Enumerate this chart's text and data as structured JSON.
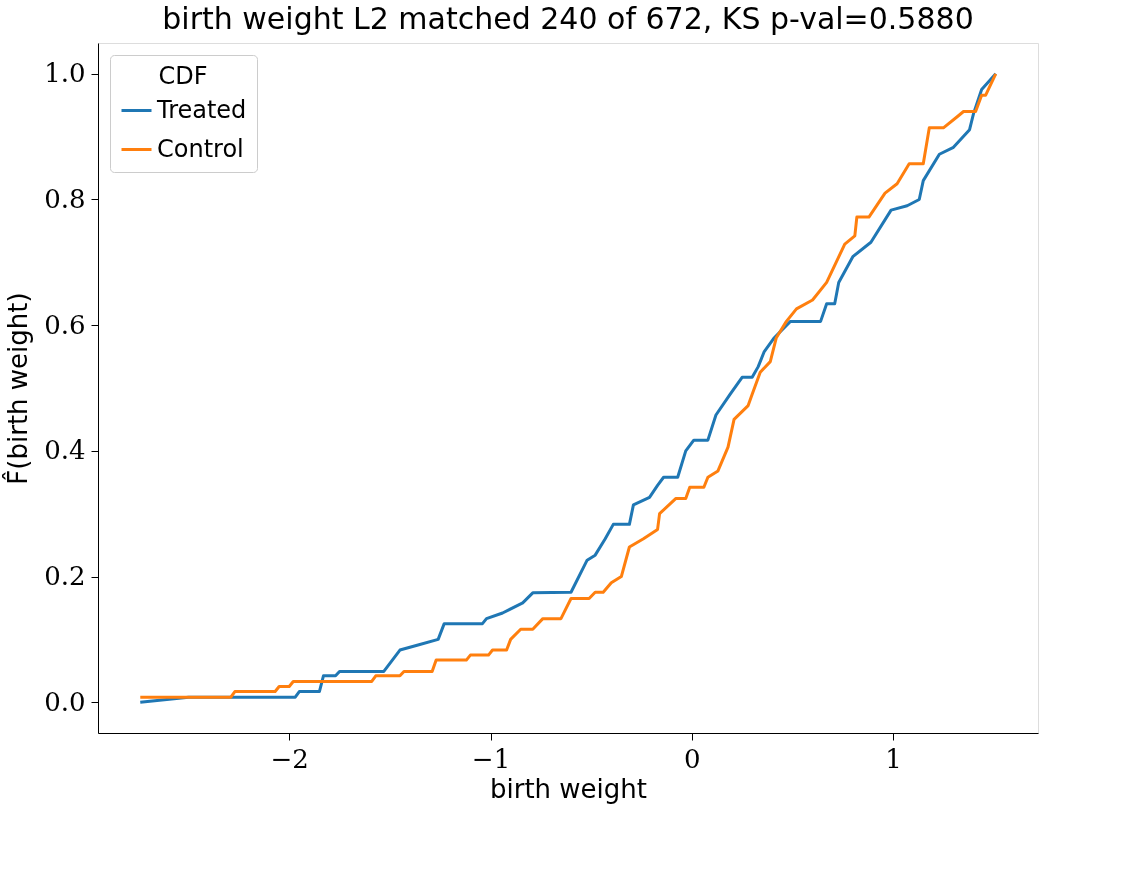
{
  "chart_data": {
    "type": "line",
    "title": "birth weight L2 matched 240 of 672, KS p-val=0.5880",
    "xlabel": "birth weight",
    "ylabel": "F̂(birth weight)",
    "legend_title": "CDF",
    "legend": "top left",
    "grid": false,
    "marker": "none",
    "line_style": "solid",
    "xlim": [
      -2.95,
      1.72
    ],
    "ylim": [
      -0.049,
      1.049
    ],
    "xticks": [
      {
        "value": -2,
        "label": "−2"
      },
      {
        "value": -1,
        "label": "−1"
      },
      0,
      1
    ],
    "yticks": [
      {
        "value": 0,
        "label": "0.0"
      },
      {
        "value": 0.2,
        "label": "0.2"
      },
      {
        "value": 0.4,
        "label": "0.4"
      },
      {
        "value": 0.6,
        "label": "0.6"
      },
      {
        "value": 0.8,
        "label": "0.8"
      },
      {
        "value": 1,
        "label": "1.0"
      }
    ],
    "series": [
      {
        "name": "Treated",
        "color": "#1f77b4",
        "x": [
          -2.74,
          -2.5,
          -1.97,
          -1.95,
          -1.85,
          -1.83,
          -1.77,
          -1.75,
          -1.53,
          -1.45,
          -1.36,
          -1.26,
          -1.23,
          -1.04,
          -1.02,
          -0.94,
          -0.84,
          -0.79,
          -0.6,
          -0.52,
          -0.48,
          -0.43,
          -0.39,
          -0.31,
          -0.29,
          -0.21,
          -0.17,
          -0.14,
          -0.07,
          -0.03,
          0.01,
          0.08,
          0.12,
          0.19,
          0.25,
          0.3,
          0.33,
          0.36,
          0.41,
          0.49,
          0.64,
          0.67,
          0.71,
          0.73,
          0.8,
          0.89,
          0.99,
          1.07,
          1.13,
          1.15,
          1.23,
          1.3,
          1.38,
          1.4,
          1.44,
          1.51
        ],
        "values": [
          0.0,
          0.008,
          0.008,
          0.017,
          0.017,
          0.042,
          0.042,
          0.049,
          0.049,
          0.083,
          0.091,
          0.1,
          0.125,
          0.125,
          0.133,
          0.142,
          0.158,
          0.174,
          0.175,
          0.226,
          0.234,
          0.26,
          0.283,
          0.283,
          0.314,
          0.326,
          0.345,
          0.358,
          0.358,
          0.4,
          0.417,
          0.417,
          0.457,
          0.49,
          0.517,
          0.517,
          0.534,
          0.558,
          0.58,
          0.606,
          0.606,
          0.634,
          0.634,
          0.668,
          0.709,
          0.732,
          0.783,
          0.79,
          0.8,
          0.83,
          0.872,
          0.883,
          0.911,
          0.937,
          0.975,
          1.0
        ]
      },
      {
        "name": "Control",
        "color": "#ff7f0e",
        "x": [
          -2.74,
          -2.29,
          -2.27,
          -2.07,
          -2.05,
          -2.0,
          -1.98,
          -1.59,
          -1.57,
          -1.45,
          -1.43,
          -1.29,
          -1.27,
          -1.12,
          -1.1,
          -1.01,
          -0.99,
          -0.92,
          -0.9,
          -0.85,
          -0.79,
          -0.74,
          -0.65,
          -0.6,
          -0.51,
          -0.48,
          -0.44,
          -0.4,
          -0.35,
          -0.31,
          -0.24,
          -0.17,
          -0.16,
          -0.08,
          -0.03,
          -0.01,
          0.06,
          0.08,
          0.13,
          0.18,
          0.21,
          0.28,
          0.3,
          0.34,
          0.39,
          0.42,
          0.47,
          0.52,
          0.6,
          0.67,
          0.76,
          0.81,
          0.82,
          0.88,
          0.96,
          1.02,
          1.08,
          1.15,
          1.18,
          1.25,
          1.32,
          1.35,
          1.41,
          1.44,
          1.46,
          1.51
        ],
        "values": [
          0.008,
          0.008,
          0.017,
          0.017,
          0.025,
          0.025,
          0.033,
          0.033,
          0.042,
          0.042,
          0.049,
          0.049,
          0.067,
          0.067,
          0.075,
          0.075,
          0.083,
          0.083,
          0.1,
          0.116,
          0.116,
          0.133,
          0.133,
          0.165,
          0.165,
          0.175,
          0.175,
          0.19,
          0.2,
          0.247,
          0.26,
          0.275,
          0.3,
          0.324,
          0.324,
          0.342,
          0.342,
          0.358,
          0.368,
          0.406,
          0.45,
          0.472,
          0.49,
          0.525,
          0.542,
          0.58,
          0.606,
          0.626,
          0.64,
          0.668,
          0.729,
          0.742,
          0.772,
          0.772,
          0.81,
          0.825,
          0.857,
          0.857,
          0.914,
          0.914,
          0.932,
          0.94,
          0.94,
          0.966,
          0.966,
          1.0
        ]
      }
    ]
  }
}
